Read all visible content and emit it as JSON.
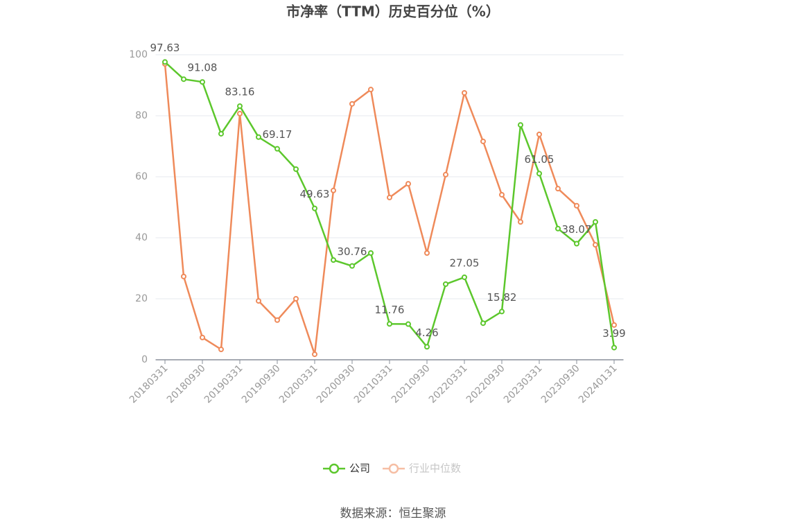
{
  "chart_data": {
    "type": "line",
    "title": "市净率（TTM）历史百分位（%）",
    "source": "数据来源：恒生聚源",
    "categories": [
      "20180331",
      null,
      "20180930",
      null,
      "20190331",
      null,
      "20190930",
      null,
      "20200331",
      null,
      "20200930",
      null,
      "20210331",
      null,
      "20210930",
      null,
      "20220331",
      null,
      "20220930",
      null,
      "20230331",
      null,
      "20230930",
      null,
      "20240131"
    ],
    "series": [
      {
        "name": "公司",
        "color": "#5cc72c",
        "values": [
          97.63,
          92.0,
          91.08,
          74.1,
          83.16,
          73.0,
          69.17,
          62.5,
          49.63,
          32.7,
          30.76,
          35.0,
          11.76,
          11.7,
          4.26,
          24.8,
          27.05,
          12.0,
          15.82,
          77.0,
          61.05,
          43.0,
          38.07,
          45.2,
          3.99
        ]
      },
      {
        "name": "行业中位数",
        "color": "#ef8a5a",
        "values": [
          97.0,
          27.3,
          7.3,
          3.4,
          80.7,
          19.3,
          13.0,
          20.0,
          1.8,
          55.5,
          83.9,
          88.6,
          53.2,
          57.7,
          35.0,
          60.7,
          87.5,
          71.6,
          54.1,
          45.2,
          73.9,
          56.1,
          50.5,
          37.7,
          11.4
        ]
      }
    ],
    "ylim": [
      0,
      100
    ],
    "yticks": [
      0,
      20,
      40,
      60,
      80,
      100
    ],
    "grid": true,
    "legend": "bottom"
  }
}
